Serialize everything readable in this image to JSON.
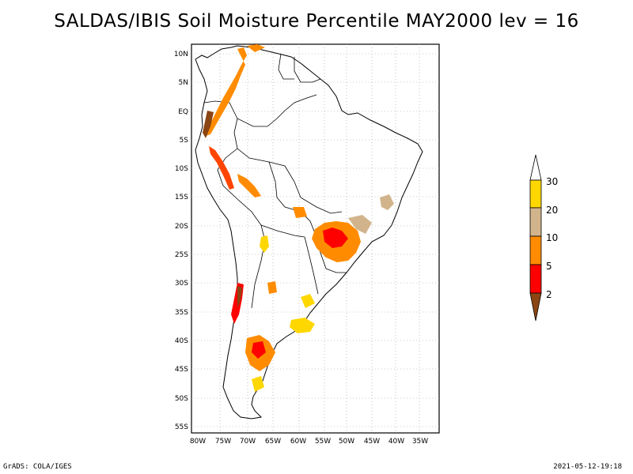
{
  "title": "SALDAS/IBIS Soil Moisture Percentile MAY2000 lev = 16",
  "footer": {
    "left": "GrADS: COLA/IGES",
    "right": "2021-05-12-19:18"
  },
  "axes": {
    "lat_labels": [
      "10N",
      "5N",
      "EQ",
      "5S",
      "10S",
      "15S",
      "20S",
      "25S",
      "30S",
      "35S",
      "40S",
      "45S",
      "50S",
      "55S"
    ],
    "lon_labels": [
      "80W",
      "75W",
      "70W",
      "65W",
      "60W",
      "55W",
      "50W",
      "45W",
      "40W",
      "35W"
    ]
  },
  "colorbar": {
    "labels": [
      "2",
      "5",
      "10",
      "20",
      "30"
    ],
    "colors": [
      "#8b4513",
      "#ff0000",
      "#ff8c00",
      "#d2b48c",
      "#ffd700",
      "#ffffff"
    ]
  }
}
